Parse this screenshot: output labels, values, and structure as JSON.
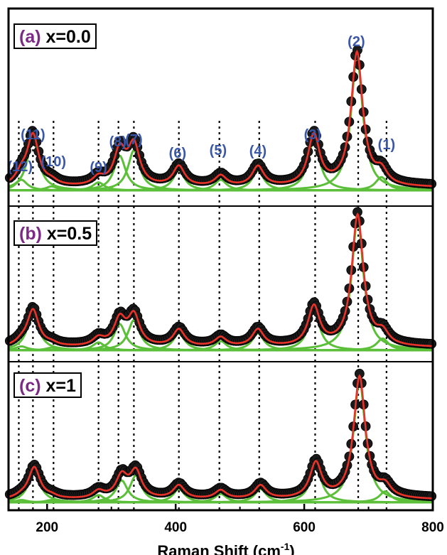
{
  "chart_data": {
    "type": "line",
    "xlabel": "Raman Shift (cm-1)",
    "xlabel_main": "Raman Shift (cm",
    "xlabel_sup": "-1",
    "xlabel_end": ")",
    "xlim": [
      140,
      800
    ],
    "x_ticks": [
      200,
      400,
      600,
      800
    ],
    "x_tick_labels": [
      "200",
      "400",
      "600",
      "800"
    ],
    "panels": [
      {
        "tag": "(a)",
        "label": "x=0.0",
        "peaks": [
          [
            160,
            0.08
          ],
          [
            178,
            0.38
          ],
          [
            207,
            0.03
          ],
          [
            280,
            0.06
          ],
          [
            313,
            0.26
          ],
          [
            335,
            0.3
          ],
          [
            405,
            0.15
          ],
          [
            470,
            0.08
          ],
          [
            528,
            0.15
          ],
          [
            615,
            0.38
          ],
          [
            682,
            1.0
          ],
          [
            720,
            0.1
          ]
        ]
      },
      {
        "tag": "(b)",
        "label": "x=0.5",
        "peaks": [
          [
            160,
            0.03
          ],
          [
            178,
            0.28
          ],
          [
            207,
            0.02
          ],
          [
            280,
            0.06
          ],
          [
            313,
            0.2
          ],
          [
            335,
            0.23
          ],
          [
            405,
            0.13
          ],
          [
            470,
            0.07
          ],
          [
            528,
            0.13
          ],
          [
            615,
            0.3
          ],
          [
            683,
            1.0
          ],
          [
            722,
            0.09
          ]
        ]
      },
      {
        "tag": "(c)",
        "label": "x=1",
        "peaks": [
          [
            160,
            0.02
          ],
          [
            180,
            0.26
          ],
          [
            207,
            0.02
          ],
          [
            280,
            0.06
          ],
          [
            316,
            0.18
          ],
          [
            338,
            0.22
          ],
          [
            405,
            0.11
          ],
          [
            470,
            0.07
          ],
          [
            532,
            0.11
          ],
          [
            618,
            0.29
          ],
          [
            686,
            1.0
          ],
          [
            726,
            0.09
          ]
        ]
      }
    ],
    "mode_labels": [
      {
        "text": "(12)",
        "x": 158
      },
      {
        "text": "(11)",
        "x": 178
      },
      {
        "text": "(10)",
        "x": 210
      },
      {
        "text": "(9)",
        "x": 280
      },
      {
        "text": "(8)",
        "x": 310
      },
      {
        "text": "(7)",
        "x": 335
      },
      {
        "text": "(6)",
        "x": 403
      },
      {
        "text": "(5)",
        "x": 466
      },
      {
        "text": "(4)",
        "x": 528
      },
      {
        "text": "(3)",
        "x": 613
      },
      {
        "text": "(2)",
        "x": 681
      },
      {
        "text": "(1)",
        "x": 728
      }
    ],
    "mode_positions": [
      156,
      178,
      210,
      280,
      311,
      335,
      405,
      468,
      530,
      617,
      684,
      728
    ],
    "colors": {
      "experimental": "#000000",
      "total_fit": "#e8332a",
      "components": "#5cbf3a",
      "mode_label": "#3b57a8",
      "panel_tag": "#7b2a86"
    },
    "grid": false,
    "legend": "none"
  }
}
